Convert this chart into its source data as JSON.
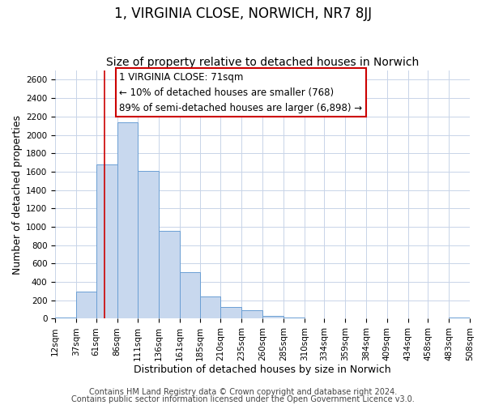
{
  "title": "1, VIRGINIA CLOSE, NORWICH, NR7 8JJ",
  "subtitle": "Size of property relative to detached houses in Norwich",
  "xlabel": "Distribution of detached houses by size in Norwich",
  "ylabel": "Number of detached properties",
  "bar_color": "#c8d8ee",
  "bar_edge_color": "#6b9fd4",
  "background_color": "#ffffff",
  "grid_color": "#c8d4e8",
  "vline_x": 71,
  "vline_color": "#cc0000",
  "bin_edges": [
    12,
    37,
    61,
    86,
    111,
    136,
    161,
    185,
    210,
    235,
    260,
    285,
    310,
    334,
    359,
    384,
    409,
    434,
    458,
    483,
    508
  ],
  "bar_heights": [
    15,
    295,
    1680,
    2140,
    1610,
    960,
    505,
    245,
    125,
    95,
    30,
    15,
    5,
    5,
    5,
    5,
    0,
    5,
    0,
    15
  ],
  "tick_labels": [
    "12sqm",
    "37sqm",
    "61sqm",
    "86sqm",
    "111sqm",
    "136sqm",
    "161sqm",
    "185sqm",
    "210sqm",
    "235sqm",
    "260sqm",
    "285sqm",
    "310sqm",
    "334sqm",
    "359sqm",
    "384sqm",
    "409sqm",
    "434sqm",
    "458sqm",
    "483sqm",
    "508sqm"
  ],
  "ylim": [
    0,
    2700
  ],
  "yticks": [
    0,
    200,
    400,
    600,
    800,
    1000,
    1200,
    1400,
    1600,
    1800,
    2000,
    2200,
    2400,
    2600
  ],
  "annotation_line1": "1 VIRGINIA CLOSE: 71sqm",
  "annotation_line2": "← 10% of detached houses are smaller (768)",
  "annotation_line3": "89% of semi-detached houses are larger (6,898) →",
  "footer_line1": "Contains HM Land Registry data © Crown copyright and database right 2024.",
  "footer_line2": "Contains public sector information licensed under the Open Government Licence v3.0.",
  "title_fontsize": 12,
  "subtitle_fontsize": 10,
  "axis_label_fontsize": 9,
  "tick_fontsize": 7.5,
  "annotation_fontsize": 8.5,
  "footer_fontsize": 7
}
